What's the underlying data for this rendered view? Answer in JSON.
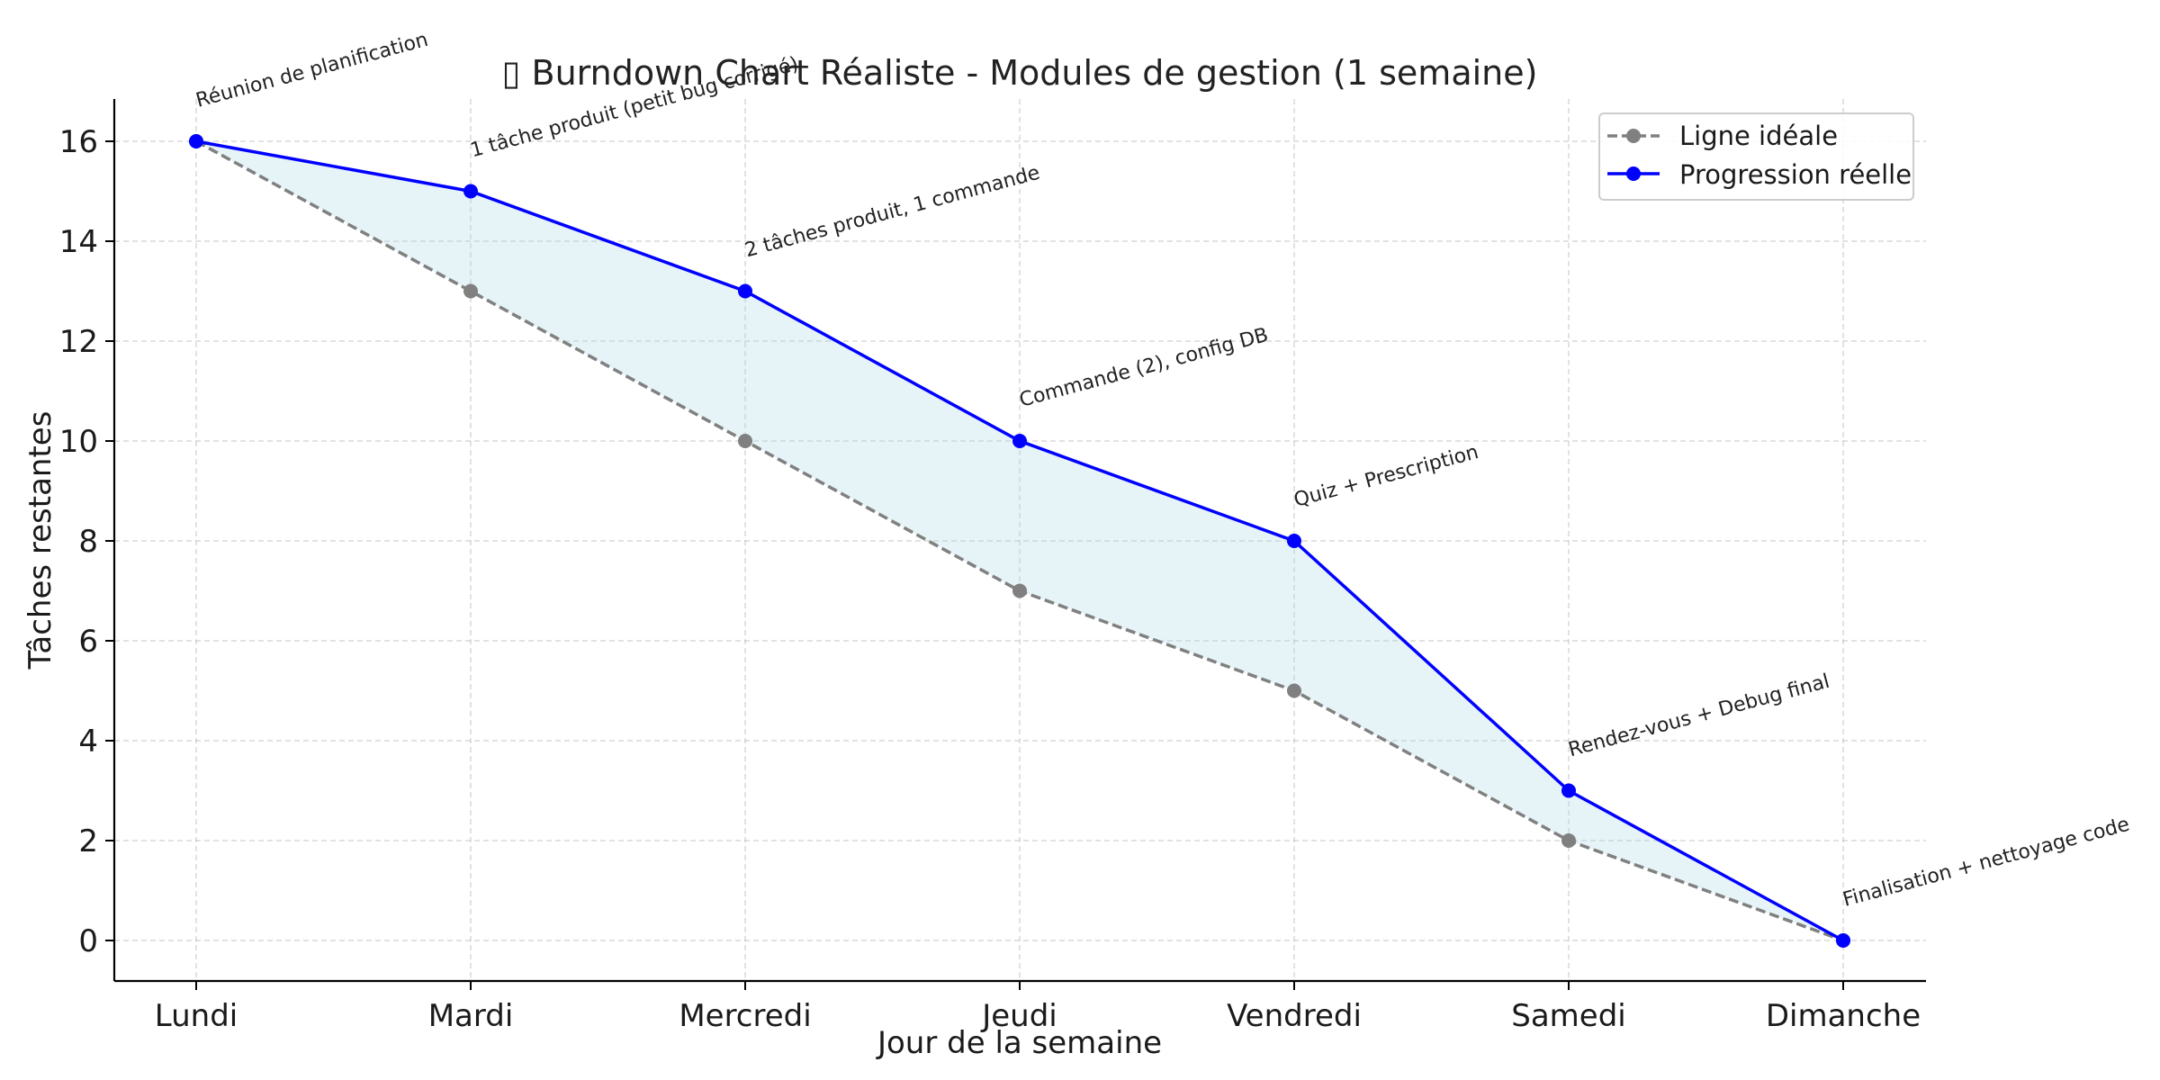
{
  "chart_data": {
    "type": "line",
    "title": "Burndown Chart Réaliste - Modules de gestion (1 semaine)",
    "title_icon": "chart-emoji-icon",
    "xlabel": "Jour de la semaine",
    "ylabel": "Tâches restantes",
    "categories": [
      "Lundi",
      "Mardi",
      "Mercredi",
      "Jeudi",
      "Vendredi",
      "Samedi",
      "Dimanche"
    ],
    "ylim": [
      -0.8,
      16.8
    ],
    "yticks": [
      0,
      2,
      4,
      6,
      8,
      10,
      12,
      14,
      16
    ],
    "grid": true,
    "legend_position": "top-right",
    "fill_between": {
      "color": "#add8e6",
      "opacity": 0.3
    },
    "series": [
      {
        "name": "Ligne idéale",
        "values": [
          16,
          13,
          10,
          7,
          5,
          2,
          0
        ],
        "color": "#808080",
        "dashed": true
      },
      {
        "name": "Progression réelle",
        "values": [
          16,
          15,
          13,
          10,
          8,
          3,
          0
        ],
        "color": "#0000ff",
        "dashed": false
      }
    ],
    "annotations": [
      "Réunion de planification",
      "1 tâche produit (petit bug corrigé)",
      "2 tâches produit, 1 commande",
      "Commande (2), config DB",
      "Quiz + Prescription",
      "Rendez-vous + Debug final",
      "Finalisation + nettoyage code"
    ]
  }
}
